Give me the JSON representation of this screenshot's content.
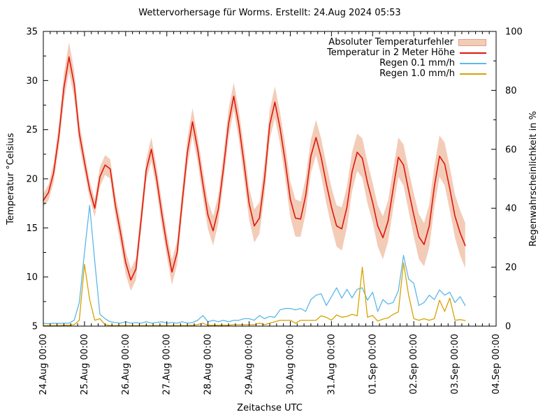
{
  "chart_data": {
    "type": "line",
    "title": "Wettervorhersage für Worms. Erstellt: 24.Aug 2024 05:53",
    "x_axis": {
      "label": "Zeitachse UTC",
      "tick_labels": [
        "24.Aug 00:00",
        "25.Aug 00:00",
        "26.Aug 00:00",
        "27.Aug 00:00",
        "28.Aug 00:00",
        "29.Aug 00:00",
        "30.Aug 00:00",
        "31.Aug 00:00",
        "01.Sep 00:00",
        "02.Sep 00:00",
        "03.Sep 00:00",
        "04.Sep 00:00"
      ],
      "tick_step_hours": 24,
      "minor_tick_hours": 4,
      "range_hours": [
        0,
        264
      ]
    },
    "y_left": {
      "label": "Temperatur °Celsius",
      "range": [
        5,
        35
      ],
      "ticks": [
        5,
        10,
        15,
        20,
        25,
        30,
        35
      ],
      "minor_step": 2.5
    },
    "y_right": {
      "label": "Regenwahrscheinlichkeit in %",
      "range": [
        0,
        100
      ],
      "ticks": [
        0,
        20,
        40,
        60,
        80,
        100
      ],
      "minor_step": 10
    },
    "sample_step_hours": 3,
    "series": [
      {
        "name": "Absoluter Temperaturfehler",
        "type": "band",
        "axis": "left",
        "color": "#f3ccb8",
        "border_color": "#dba183",
        "center_series": "Temperatur in 2 Meter Höhe",
        "halfwidth": [
          0.7,
          0.8,
          1.0,
          1.2,
          1.4,
          1.5,
          1.4,
          1.2,
          1.0,
          0.9,
          0.9,
          1.0,
          1.0,
          1.0,
          1.1,
          1.2,
          1.2,
          1.1,
          1.1,
          1.2,
          1.1,
          1.2,
          1.2,
          1.3,
          1.2,
          1.3,
          1.2,
          1.3,
          1.4,
          1.4,
          1.3,
          1.4,
          1.4,
          1.5,
          1.4,
          1.4,
          1.5,
          1.4,
          1.5,
          1.6,
          1.6,
          1.7,
          1.6,
          1.6,
          1.5,
          1.6,
          1.6,
          1.7,
          1.8,
          1.9,
          1.8,
          1.8,
          1.7,
          1.8,
          1.9,
          2.0,
          2.0,
          2.1,
          2.2,
          2.1,
          2.0,
          1.9,
          2.0,
          2.1,
          2.0,
          2.1,
          2.2,
          2.1,
          2.0,
          2.0,
          2.1,
          2.1,
          2.2,
          2.3,
          2.2,
          2.2,
          2.1,
          2.1,
          2.2,
          2.2,
          2.2,
          2.3,
          2.3
        ]
      },
      {
        "name": "Temperatur in 2 Meter Höhe",
        "type": "line",
        "axis": "left",
        "color": "#e1150b",
        "values": [
          17.8,
          18.6,
          20.6,
          24.3,
          29.3,
          32.4,
          29.6,
          24.6,
          21.7,
          18.9,
          17.0,
          20.2,
          21.4,
          21.0,
          17.3,
          14.5,
          11.5,
          9.7,
          10.8,
          15.8,
          20.9,
          23.0,
          20.1,
          16.5,
          13.3,
          10.5,
          12.5,
          17.7,
          22.7,
          25.8,
          23.0,
          19.5,
          16.3,
          14.7,
          16.9,
          21.0,
          25.6,
          28.4,
          25.5,
          21.6,
          17.5,
          15.2,
          16.0,
          20.0,
          25.5,
          27.8,
          25.2,
          21.8,
          17.9,
          16.0,
          15.9,
          18.3,
          22.3,
          24.2,
          22.2,
          19.5,
          17.1,
          15.2,
          14.9,
          17.1,
          20.7,
          22.7,
          22.1,
          19.6,
          17.6,
          15.2,
          14.0,
          15.7,
          19.0,
          22.2,
          21.4,
          18.8,
          16.3,
          14.1,
          13.3,
          15.2,
          19.2,
          22.3,
          21.5,
          19.0,
          16.2,
          14.5,
          13.2
        ]
      },
      {
        "name": "Regen 0.1 mm/h",
        "type": "line",
        "axis": "right",
        "color": "#5cb8e8",
        "values": [
          1,
          0.8,
          1,
          0.9,
          1,
          1,
          2,
          8,
          25,
          41,
          22,
          4,
          2.5,
          1.5,
          1.2,
          1,
          1.5,
          1,
          1.2,
          1,
          1.5,
          1,
          1.2,
          1.5,
          1,
          1.2,
          1,
          1.5,
          1,
          1.2,
          2,
          3.6,
          1.5,
          2,
          1.5,
          2,
          1.5,
          2,
          2,
          2.5,
          2.5,
          2,
          3.6,
          2.5,
          3.3,
          3,
          5.5,
          6,
          6,
          5.5,
          6,
          5,
          9,
          10.5,
          11,
          7,
          10,
          13,
          9.5,
          12.5,
          9.6,
          12.5,
          13,
          8.8,
          11.5,
          5,
          9,
          7.5,
          8,
          12,
          24,
          16,
          14.5,
          7,
          8,
          10.5,
          9,
          12.3,
          10.5,
          11.5,
          8,
          10,
          7
        ]
      },
      {
        "name": "Regen 1.0 mm/h",
        "type": "line",
        "axis": "right",
        "color": "#d7a200",
        "values": [
          0.2,
          0.2,
          0.2,
          0.2,
          0.3,
          0.3,
          0.5,
          2,
          21,
          9,
          2,
          2.5,
          0.5,
          0.2,
          0.2,
          0.2,
          0.2,
          0.2,
          0.2,
          0.2,
          0.2,
          0.2,
          0.2,
          0.2,
          0.2,
          0.2,
          0.2,
          0.2,
          0.2,
          0.3,
          0.5,
          1,
          0.3,
          0.3,
          0.3,
          0.3,
          0.3,
          0.5,
          0.5,
          0.5,
          0.5,
          0.5,
          1,
          0.5,
          1,
          1.5,
          2,
          2,
          2,
          1,
          2,
          2,
          2,
          2,
          3.5,
          3,
          2,
          3.8,
          3,
          3.3,
          4,
          3.5,
          20,
          3,
          3.6,
          1.7,
          2.4,
          2.8,
          4,
          4.8,
          21.5,
          10.5,
          2.5,
          2,
          2.5,
          2,
          2.5,
          8.8,
          5,
          9.5,
          2,
          2.2,
          1.9
        ]
      }
    ]
  }
}
